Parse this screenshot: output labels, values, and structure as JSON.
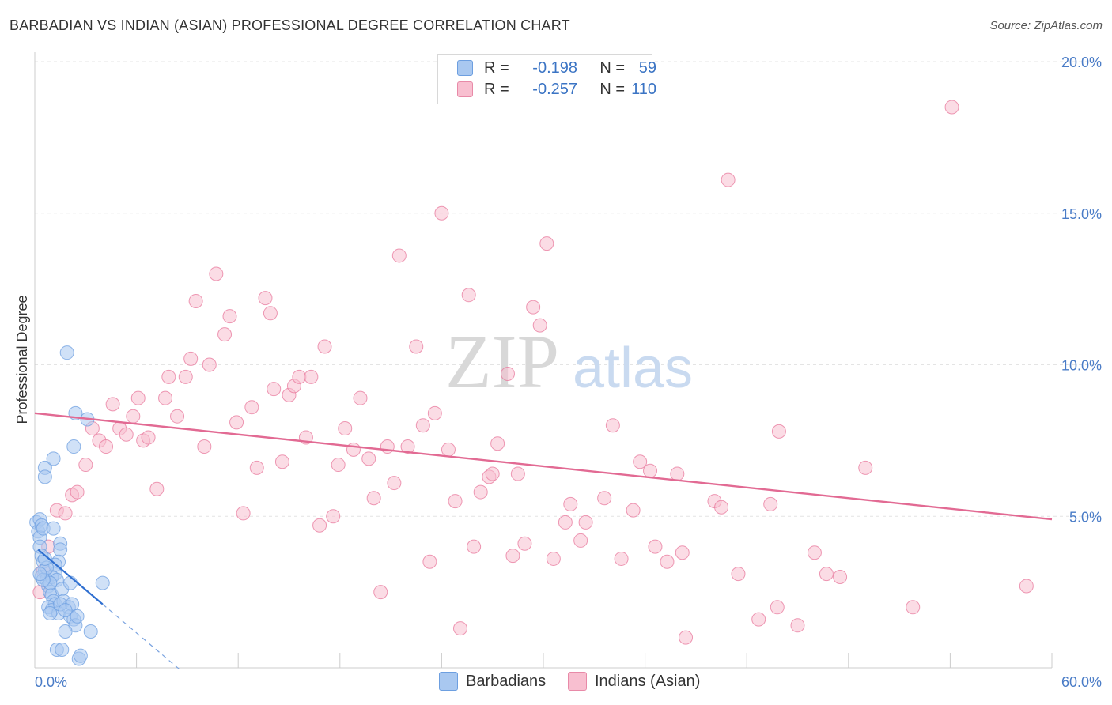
{
  "title": "BARBADIAN VS INDIAN (ASIAN) PROFESSIONAL DEGREE CORRELATION CHART",
  "source": "Source: ZipAtlas.com",
  "watermark": {
    "zip": "ZIP",
    "atlas": "atlas"
  },
  "legend": {
    "rows": [
      {
        "r_label": "R =",
        "r_value": "-0.198",
        "n_label": "N =",
        "n_value": "59",
        "color": "#a9c8f0",
        "border": "#6d9fe0"
      },
      {
        "r_label": "R =",
        "r_value": "-0.257",
        "n_label": "N =",
        "n_value": "110",
        "color": "#f8bfd0",
        "border": "#e88aa8"
      }
    ]
  },
  "bottom_legend": [
    {
      "label": "Barbadians",
      "color": "#a9c8f0"
    },
    {
      "label": "Indians (Asian)",
      "color": "#f8bfd0"
    }
  ],
  "chart_data": {
    "type": "scatter",
    "title": "BARBADIAN VS INDIAN (ASIAN) PROFESSIONAL DEGREE CORRELATION CHART",
    "xlabel": "",
    "ylabel": "Professional Degree",
    "xlim": [
      0,
      60
    ],
    "ylim": [
      0,
      20
    ],
    "x_tick_labels": [
      "0.0%",
      "60.0%"
    ],
    "y_ticks": [
      5,
      10,
      15,
      20
    ],
    "y_tick_labels": [
      "5.0%",
      "10.0%",
      "15.0%",
      "20.0%"
    ],
    "grid": true,
    "legend_position": "top-center",
    "series": [
      {
        "name": "Barbadians",
        "color": "#6d9fe0",
        "fill": "#a9c8f0",
        "r": -0.198,
        "n": 59,
        "trend": {
          "x0": 0.2,
          "y0": 3.9,
          "x1": 4.0,
          "y1": 2.1,
          "dash_to_x": 8.5
        },
        "points": [
          [
            0.1,
            4.8
          ],
          [
            0.2,
            4.5
          ],
          [
            0.3,
            4.9
          ],
          [
            0.3,
            4.3
          ],
          [
            0.4,
            4.7
          ],
          [
            0.5,
            4.6
          ],
          [
            0.3,
            4.0
          ],
          [
            0.4,
            3.7
          ],
          [
            0.5,
            3.5
          ],
          [
            0.6,
            3.2
          ],
          [
            0.4,
            3.0
          ],
          [
            0.7,
            2.9
          ],
          [
            0.8,
            2.7
          ],
          [
            0.9,
            2.5
          ],
          [
            1.0,
            2.4
          ],
          [
            1.1,
            2.2
          ],
          [
            1.2,
            2.1
          ],
          [
            0.8,
            2.0
          ],
          [
            1.0,
            1.9
          ],
          [
            1.4,
            1.8
          ],
          [
            0.6,
            6.6
          ],
          [
            0.6,
            6.3
          ],
          [
            1.1,
            6.9
          ],
          [
            1.5,
            4.1
          ],
          [
            1.5,
            3.9
          ],
          [
            1.4,
            3.5
          ],
          [
            1.2,
            3.1
          ],
          [
            1.0,
            3.0
          ],
          [
            1.3,
            2.9
          ],
          [
            1.6,
            2.6
          ],
          [
            2.1,
            2.8
          ],
          [
            1.7,
            2.2
          ],
          [
            2.0,
            2.0
          ],
          [
            2.1,
            1.7
          ],
          [
            2.3,
            1.6
          ],
          [
            2.4,
            1.4
          ],
          [
            1.8,
            1.2
          ],
          [
            1.3,
            0.6
          ],
          [
            1.6,
            0.6
          ],
          [
            2.6,
            0.3
          ],
          [
            2.7,
            0.4
          ],
          [
            3.3,
            1.2
          ],
          [
            4.0,
            2.8
          ],
          [
            1.9,
            10.4
          ],
          [
            2.4,
            8.4
          ],
          [
            3.1,
            8.2
          ],
          [
            2.3,
            7.3
          ],
          [
            0.9,
            2.8
          ],
          [
            1.2,
            3.4
          ],
          [
            0.7,
            3.3
          ],
          [
            0.5,
            2.9
          ],
          [
            1.5,
            2.1
          ],
          [
            2.2,
            2.1
          ],
          [
            0.9,
            1.8
          ],
          [
            1.8,
            1.9
          ],
          [
            2.5,
            1.7
          ],
          [
            0.3,
            3.1
          ],
          [
            0.6,
            3.6
          ],
          [
            1.1,
            4.6
          ]
        ]
      },
      {
        "name": "Indians (Asian)",
        "color": "#e8789c",
        "fill": "#f8bfd0",
        "r": -0.257,
        "n": 110,
        "trend": {
          "x0": 0.0,
          "y0": 8.4,
          "x1": 60.0,
          "y1": 4.9
        },
        "points": [
          [
            0.3,
            2.5
          ],
          [
            0.5,
            3.2
          ],
          [
            0.8,
            4.0
          ],
          [
            1.3,
            5.2
          ],
          [
            1.8,
            5.1
          ],
          [
            2.2,
            5.7
          ],
          [
            2.5,
            5.8
          ],
          [
            3.0,
            6.7
          ],
          [
            3.4,
            7.9
          ],
          [
            3.8,
            7.5
          ],
          [
            4.2,
            7.3
          ],
          [
            4.6,
            8.7
          ],
          [
            5.0,
            7.9
          ],
          [
            5.4,
            7.7
          ],
          [
            5.8,
            8.3
          ],
          [
            6.1,
            8.9
          ],
          [
            6.4,
            7.5
          ],
          [
            6.7,
            7.6
          ],
          [
            7.2,
            5.9
          ],
          [
            7.7,
            8.9
          ],
          [
            7.9,
            9.6
          ],
          [
            8.4,
            8.3
          ],
          [
            8.9,
            9.6
          ],
          [
            9.2,
            10.2
          ],
          [
            9.5,
            12.1
          ],
          [
            10.0,
            7.3
          ],
          [
            10.3,
            10.0
          ],
          [
            10.7,
            13.0
          ],
          [
            11.2,
            11.0
          ],
          [
            11.5,
            11.6
          ],
          [
            11.9,
            8.1
          ],
          [
            12.3,
            5.1
          ],
          [
            12.8,
            8.6
          ],
          [
            13.1,
            6.6
          ],
          [
            13.6,
            12.2
          ],
          [
            13.9,
            11.7
          ],
          [
            14.1,
            9.2
          ],
          [
            14.6,
            6.8
          ],
          [
            15.0,
            9.0
          ],
          [
            15.3,
            9.3
          ],
          [
            15.6,
            9.6
          ],
          [
            16.0,
            7.6
          ],
          [
            16.3,
            9.6
          ],
          [
            16.8,
            4.7
          ],
          [
            17.1,
            10.6
          ],
          [
            17.6,
            5.0
          ],
          [
            17.9,
            6.7
          ],
          [
            18.3,
            7.9
          ],
          [
            18.8,
            7.2
          ],
          [
            19.2,
            8.9
          ],
          [
            19.7,
            6.9
          ],
          [
            20.0,
            5.6
          ],
          [
            20.4,
            2.5
          ],
          [
            20.8,
            7.3
          ],
          [
            21.2,
            6.1
          ],
          [
            21.5,
            13.6
          ],
          [
            22.0,
            7.3
          ],
          [
            22.5,
            10.6
          ],
          [
            22.9,
            8.0
          ],
          [
            23.3,
            3.5
          ],
          [
            23.6,
            8.4
          ],
          [
            24.0,
            15.0
          ],
          [
            24.4,
            7.2
          ],
          [
            24.8,
            5.5
          ],
          [
            25.1,
            1.3
          ],
          [
            25.6,
            12.3
          ],
          [
            25.9,
            4.0
          ],
          [
            26.3,
            5.8
          ],
          [
            26.8,
            6.3
          ],
          [
            27.0,
            6.4
          ],
          [
            27.3,
            7.4
          ],
          [
            27.9,
            9.7
          ],
          [
            28.2,
            3.7
          ],
          [
            28.5,
            6.4
          ],
          [
            28.9,
            4.1
          ],
          [
            29.4,
            11.9
          ],
          [
            29.8,
            11.3
          ],
          [
            30.2,
            14.0
          ],
          [
            30.6,
            3.6
          ],
          [
            31.3,
            4.8
          ],
          [
            31.6,
            5.4
          ],
          [
            32.2,
            4.2
          ],
          [
            32.5,
            4.8
          ],
          [
            33.6,
            5.6
          ],
          [
            34.1,
            8.0
          ],
          [
            34.6,
            3.6
          ],
          [
            35.3,
            5.2
          ],
          [
            35.7,
            6.8
          ],
          [
            36.3,
            6.5
          ],
          [
            36.6,
            4.0
          ],
          [
            37.3,
            3.5
          ],
          [
            37.9,
            6.4
          ],
          [
            38.2,
            3.8
          ],
          [
            38.4,
            1.0
          ],
          [
            40.1,
            5.5
          ],
          [
            40.5,
            5.3
          ],
          [
            40.9,
            16.1
          ],
          [
            41.5,
            3.1
          ],
          [
            42.7,
            1.6
          ],
          [
            43.4,
            5.4
          ],
          [
            43.8,
            2.0
          ],
          [
            43.9,
            7.8
          ],
          [
            45.0,
            1.4
          ],
          [
            46.0,
            3.8
          ],
          [
            46.7,
            3.1
          ],
          [
            47.5,
            3.0
          ],
          [
            49.0,
            6.6
          ],
          [
            51.8,
            2.0
          ],
          [
            54.1,
            18.5
          ],
          [
            58.5,
            2.7
          ]
        ]
      }
    ]
  }
}
